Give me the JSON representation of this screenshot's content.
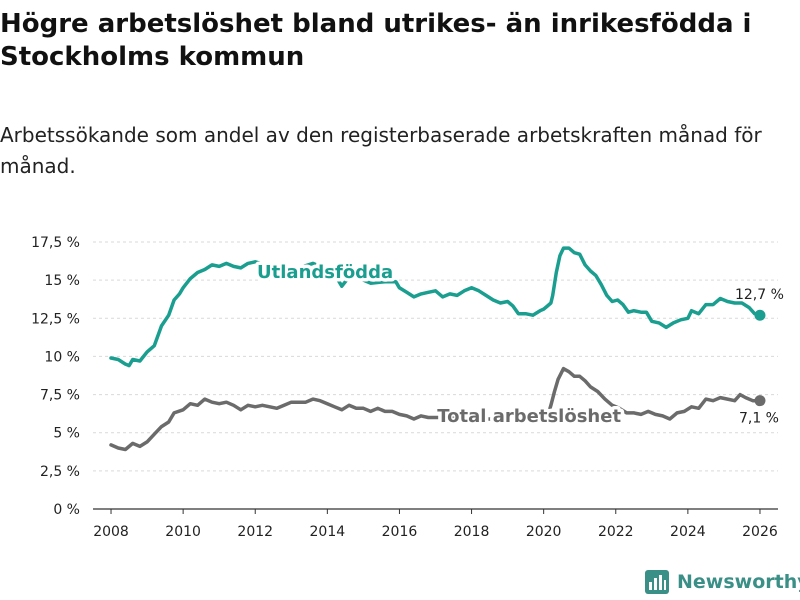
{
  "title": "Högre arbetslöshet bland utrikes- än inrikesfödda i Stockholms kommun",
  "subtitle": "Arbetssökande som andel av den registerbaserade arbetskraften månad för månad.",
  "brand": {
    "name": "Newsworthy",
    "icon": "bar-chart-logo-icon",
    "color": "#3a8f86"
  },
  "chart_data": {
    "type": "line",
    "xlim": [
      2007.5,
      2026.5
    ],
    "ylim": [
      0,
      17.5
    ],
    "xticks": [
      2008,
      2010,
      2012,
      2014,
      2016,
      2018,
      2020,
      2022,
      2024,
      2026
    ],
    "xtick_labels": [
      "2008",
      "2010",
      "2012",
      "2014",
      "2016",
      "2018",
      "2020",
      "2022",
      "2024",
      "2026"
    ],
    "yticks": [
      0,
      2.5,
      5,
      7.5,
      10,
      12.5,
      15,
      17.5
    ],
    "ytick_labels": [
      "0 %",
      "2,5 %",
      "5 %",
      "7,5 %",
      "10 %",
      "12,5 %",
      "15 %",
      "17,5 %"
    ],
    "series": [
      {
        "name": "Utlandsfödda",
        "color": "#1a9e8f",
        "label": "Utlandsfödda",
        "end_label": "12,7 %",
        "points": [
          [
            2008.0,
            9.9
          ],
          [
            2008.2,
            9.8
          ],
          [
            2008.4,
            9.5
          ],
          [
            2008.5,
            9.4
          ],
          [
            2008.6,
            9.8
          ],
          [
            2008.8,
            9.7
          ],
          [
            2009.0,
            10.3
          ],
          [
            2009.2,
            10.7
          ],
          [
            2009.4,
            12.0
          ],
          [
            2009.6,
            12.7
          ],
          [
            2009.75,
            13.7
          ],
          [
            2009.9,
            14.1
          ],
          [
            2010.0,
            14.5
          ],
          [
            2010.2,
            15.1
          ],
          [
            2010.4,
            15.5
          ],
          [
            2010.6,
            15.7
          ],
          [
            2010.8,
            16.0
          ],
          [
            2011.0,
            15.9
          ],
          [
            2011.2,
            16.1
          ],
          [
            2011.4,
            15.9
          ],
          [
            2011.6,
            15.8
          ],
          [
            2011.8,
            16.1
          ],
          [
            2012.0,
            16.2
          ],
          [
            2012.3,
            16.0
          ],
          [
            2012.6,
            15.8
          ],
          [
            2012.9,
            15.6
          ],
          [
            2013.2,
            15.8
          ],
          [
            2013.6,
            16.1
          ],
          [
            2013.9,
            15.8
          ],
          [
            2014.2,
            15.4
          ],
          [
            2014.4,
            14.6
          ],
          [
            2014.6,
            15.2
          ],
          [
            2014.9,
            15.1
          ],
          [
            2015.2,
            14.8
          ],
          [
            2015.6,
            14.9
          ],
          [
            2015.9,
            14.9
          ],
          [
            2016.0,
            14.5
          ],
          [
            2016.2,
            14.2
          ],
          [
            2016.4,
            13.9
          ],
          [
            2016.6,
            14.1
          ],
          [
            2016.8,
            14.2
          ],
          [
            2017.0,
            14.3
          ],
          [
            2017.2,
            13.9
          ],
          [
            2017.4,
            14.1
          ],
          [
            2017.6,
            14.0
          ],
          [
            2017.8,
            14.3
          ],
          [
            2018.0,
            14.5
          ],
          [
            2018.2,
            14.3
          ],
          [
            2018.4,
            14.0
          ],
          [
            2018.6,
            13.7
          ],
          [
            2018.8,
            13.5
          ],
          [
            2019.0,
            13.6
          ],
          [
            2019.15,
            13.3
          ],
          [
            2019.3,
            12.8
          ],
          [
            2019.5,
            12.8
          ],
          [
            2019.7,
            12.7
          ],
          [
            2019.9,
            13.0
          ],
          [
            2020.0,
            13.1
          ],
          [
            2020.1,
            13.3
          ],
          [
            2020.2,
            13.5
          ],
          [
            2020.25,
            14.0
          ],
          [
            2020.35,
            15.5
          ],
          [
            2020.45,
            16.6
          ],
          [
            2020.55,
            17.1
          ],
          [
            2020.7,
            17.1
          ],
          [
            2020.85,
            16.8
          ],
          [
            2021.0,
            16.7
          ],
          [
            2021.15,
            16.0
          ],
          [
            2021.3,
            15.6
          ],
          [
            2021.45,
            15.3
          ],
          [
            2021.6,
            14.7
          ],
          [
            2021.75,
            14.0
          ],
          [
            2021.9,
            13.6
          ],
          [
            2022.05,
            13.7
          ],
          [
            2022.2,
            13.4
          ],
          [
            2022.35,
            12.9
          ],
          [
            2022.5,
            13.0
          ],
          [
            2022.7,
            12.9
          ],
          [
            2022.85,
            12.9
          ],
          [
            2023.0,
            12.3
          ],
          [
            2023.2,
            12.2
          ],
          [
            2023.4,
            11.9
          ],
          [
            2023.6,
            12.2
          ],
          [
            2023.8,
            12.4
          ],
          [
            2024.0,
            12.5
          ],
          [
            2024.1,
            13.0
          ],
          [
            2024.3,
            12.8
          ],
          [
            2024.5,
            13.4
          ],
          [
            2024.7,
            13.4
          ],
          [
            2024.9,
            13.8
          ],
          [
            2025.1,
            13.6
          ],
          [
            2025.3,
            13.5
          ],
          [
            2025.5,
            13.5
          ],
          [
            2025.7,
            13.2
          ],
          [
            2025.85,
            12.8
          ],
          [
            2026.0,
            12.7
          ]
        ]
      },
      {
        "name": "Total arbetslöshet",
        "color": "#6b6b6b",
        "label": "Total arbetslöshet",
        "end_label": "7,1 %",
        "points": [
          [
            2008.0,
            4.2
          ],
          [
            2008.2,
            4.0
          ],
          [
            2008.4,
            3.9
          ],
          [
            2008.6,
            4.3
          ],
          [
            2008.8,
            4.1
          ],
          [
            2009.0,
            4.4
          ],
          [
            2009.2,
            4.9
          ],
          [
            2009.4,
            5.4
          ],
          [
            2009.6,
            5.7
          ],
          [
            2009.75,
            6.3
          ],
          [
            2010.0,
            6.5
          ],
          [
            2010.2,
            6.9
          ],
          [
            2010.4,
            6.8
          ],
          [
            2010.6,
            7.2
          ],
          [
            2010.8,
            7.0
          ],
          [
            2011.0,
            6.9
          ],
          [
            2011.2,
            7.0
          ],
          [
            2011.4,
            6.8
          ],
          [
            2011.6,
            6.5
          ],
          [
            2011.8,
            6.8
          ],
          [
            2012.0,
            6.7
          ],
          [
            2012.2,
            6.8
          ],
          [
            2012.4,
            6.7
          ],
          [
            2012.6,
            6.6
          ],
          [
            2012.8,
            6.8
          ],
          [
            2013.0,
            7.0
          ],
          [
            2013.2,
            7.0
          ],
          [
            2013.4,
            7.0
          ],
          [
            2013.6,
            7.2
          ],
          [
            2013.8,
            7.1
          ],
          [
            2014.0,
            6.9
          ],
          [
            2014.2,
            6.7
          ],
          [
            2014.4,
            6.5
          ],
          [
            2014.6,
            6.8
          ],
          [
            2014.8,
            6.6
          ],
          [
            2015.0,
            6.6
          ],
          [
            2015.2,
            6.4
          ],
          [
            2015.4,
            6.6
          ],
          [
            2015.6,
            6.4
          ],
          [
            2015.8,
            6.4
          ],
          [
            2016.0,
            6.2
          ],
          [
            2016.2,
            6.1
          ],
          [
            2016.4,
            5.9
          ],
          [
            2016.6,
            6.1
          ],
          [
            2016.8,
            6.0
          ],
          [
            2017.0,
            6.0
          ],
          [
            2017.2,
            6.0
          ],
          [
            2017.4,
            6.0
          ],
          [
            2017.6,
            6.0
          ],
          [
            2017.8,
            6.0
          ],
          [
            2018.0,
            5.9
          ],
          [
            2018.5,
            5.9
          ],
          [
            2019.0,
            5.8
          ],
          [
            2019.5,
            5.8
          ],
          [
            2020.0,
            5.9
          ],
          [
            2020.1,
            6.0
          ],
          [
            2020.2,
            6.8
          ],
          [
            2020.3,
            7.7
          ],
          [
            2020.4,
            8.5
          ],
          [
            2020.55,
            9.2
          ],
          [
            2020.7,
            9.0
          ],
          [
            2020.85,
            8.7
          ],
          [
            2021.0,
            8.7
          ],
          [
            2021.15,
            8.4
          ],
          [
            2021.3,
            8.0
          ],
          [
            2021.5,
            7.7
          ],
          [
            2021.7,
            7.2
          ],
          [
            2021.9,
            6.8
          ],
          [
            2022.1,
            6.6
          ],
          [
            2022.3,
            6.3
          ],
          [
            2022.5,
            6.3
          ],
          [
            2022.7,
            6.2
          ],
          [
            2022.9,
            6.4
          ],
          [
            2023.1,
            6.2
          ],
          [
            2023.3,
            6.1
          ],
          [
            2023.5,
            5.9
          ],
          [
            2023.7,
            6.3
          ],
          [
            2023.9,
            6.4
          ],
          [
            2024.1,
            6.7
          ],
          [
            2024.3,
            6.6
          ],
          [
            2024.5,
            7.2
          ],
          [
            2024.7,
            7.1
          ],
          [
            2024.9,
            7.3
          ],
          [
            2025.1,
            7.2
          ],
          [
            2025.3,
            7.1
          ],
          [
            2025.45,
            7.5
          ],
          [
            2025.6,
            7.3
          ],
          [
            2025.8,
            7.1
          ],
          [
            2026.0,
            7.1
          ]
        ]
      }
    ]
  }
}
